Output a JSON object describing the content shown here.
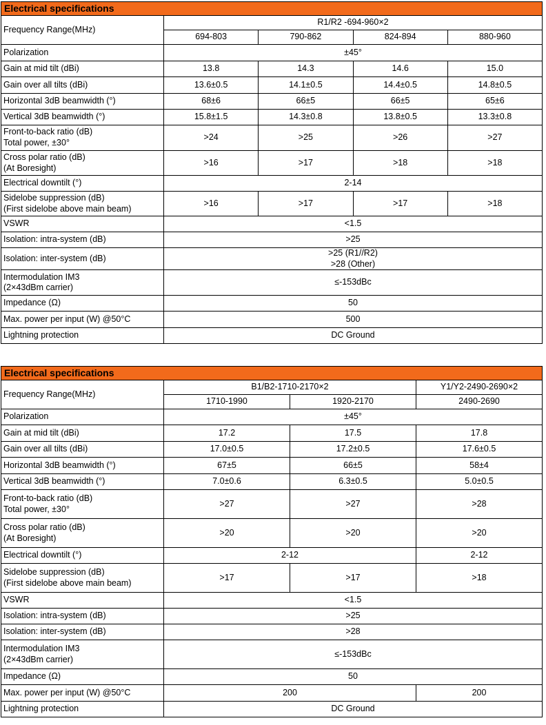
{
  "colors": {
    "header_bg": "#F26A1B"
  },
  "table1": {
    "title": "Electrical specifications",
    "band": "R1/R2 -694-960×2",
    "freq_label": "Frequency Range(MHz)",
    "sub_ranges": [
      "694-803",
      "790-862",
      "824-894",
      "880-960"
    ],
    "polarization": {
      "label": "Polarization",
      "value": "±45°"
    },
    "gain_mid": {
      "label": "Gain at mid tilt (dBi)",
      "values": [
        "13.8",
        "14.3",
        "14.6",
        "15.0"
      ]
    },
    "gain_all": {
      "label": "Gain over all tilts (dBi)",
      "values": [
        "13.6±0.5",
        "14.1±0.5",
        "14.4±0.5",
        "14.8±0.5"
      ]
    },
    "hbw": {
      "label": "Horizontal 3dB beamwidth (°)",
      "values": [
        "68±6",
        "66±5",
        "66±5",
        "65±6"
      ]
    },
    "vbw": {
      "label": "Vertical 3dB beamwidth (°)",
      "values": [
        "15.8±1.5",
        "14.3±0.8",
        "13.8±0.5",
        "13.3±0.8"
      ]
    },
    "fbr": {
      "label1": "Front-to-back ratio (dB)",
      "label2": "Total power, ±30°",
      "values": [
        ">24",
        ">25",
        ">26",
        ">27"
      ]
    },
    "cpr": {
      "label1": "Cross polar ratio (dB)",
      "label2": "(At Boresight)",
      "values": [
        ">16",
        ">17",
        ">18",
        ">18"
      ]
    },
    "downtilt": {
      "label": "Electrical downtilt (°)",
      "value": "2-14"
    },
    "sidelobe": {
      "label1": "Sidelobe suppression (dB)",
      "label2": "(First sidelobe above main beam)",
      "values": [
        ">16",
        ">17",
        ">17",
        ">18"
      ]
    },
    "vswr": {
      "label": "VSWR",
      "value": "<1.5"
    },
    "iso_intra": {
      "label": "Isolation: intra-system (dB)",
      "value": ">25"
    },
    "iso_inter": {
      "label": "Isolation: inter-system (dB)",
      "value1": ">25 (R1//R2)",
      "value2": ">28 (Other)"
    },
    "im3": {
      "label1": "Intermodulation IM3",
      "label2": "(2×43dBm carrier)",
      "value": "≤-153dBc"
    },
    "impedance": {
      "label": "Impedance (Ω)",
      "value": "50"
    },
    "max_power": {
      "label": "Max. power per input (W) @50°C",
      "value": "500"
    },
    "lightning": {
      "label": "Lightning protection",
      "value": "DC Ground"
    }
  },
  "table2": {
    "title": "Electrical specifications",
    "band_b": "B1/B2-1710-2170×2",
    "band_y": "Y1/Y2-2490-2690×2",
    "freq_label": "Frequency Range(MHz)",
    "sub_ranges": [
      "1710-1990",
      "1920-2170",
      "2490-2690"
    ],
    "polarization": {
      "label": "Polarization",
      "value": "±45°"
    },
    "gain_mid": {
      "label": "Gain at mid tilt (dBi)",
      "values": [
        "17.2",
        "17.5",
        "17.8"
      ]
    },
    "gain_all": {
      "label": "Gain over all tilts (dBi)",
      "values": [
        "17.0±0.5",
        "17.2±0.5",
        "17.6±0.5"
      ]
    },
    "hbw": {
      "label": "Horizontal 3dB beamwidth (°)",
      "values": [
        "67±5",
        "66±5",
        "58±4"
      ]
    },
    "vbw": {
      "label": "Vertical 3dB beamwidth (°)",
      "values": [
        "7.0±0.6",
        "6.3±0.5",
        "5.0±0.5"
      ]
    },
    "fbr": {
      "label1": "Front-to-back ratio (dB)",
      "label2": "Total power, ±30°",
      "values": [
        ">27",
        ">27",
        ">28"
      ]
    },
    "cpr": {
      "label1": "Cross polar ratio (dB)",
      "label2": "(At Boresight)",
      "values": [
        ">20",
        ">20",
        ">20"
      ]
    },
    "downtilt": {
      "label": "Electrical downtilt (°)",
      "value_b": "2-12",
      "value_y": "2-12"
    },
    "sidelobe": {
      "label1": "Sidelobe suppression (dB)",
      "label2": "(First sidelobe above main beam)",
      "values": [
        ">17",
        ">17",
        ">18"
      ]
    },
    "vswr": {
      "label": "VSWR",
      "value": "<1.5"
    },
    "iso_intra": {
      "label": "Isolation: intra-system (dB)",
      "value": ">25"
    },
    "iso_inter": {
      "label": "Isolation: inter-system (dB)",
      "value": ">28"
    },
    "im3": {
      "label1": "Intermodulation IM3",
      "label2": "(2×43dBm carrier)",
      "value": "≤-153dBc"
    },
    "impedance": {
      "label": "Impedance (Ω)",
      "value": "50"
    },
    "max_power": {
      "label": "Max. power per input (W) @50°C",
      "value_b": "200",
      "value_y": "200"
    },
    "lightning": {
      "label": "Lightning protection",
      "value": "DC Ground"
    }
  }
}
